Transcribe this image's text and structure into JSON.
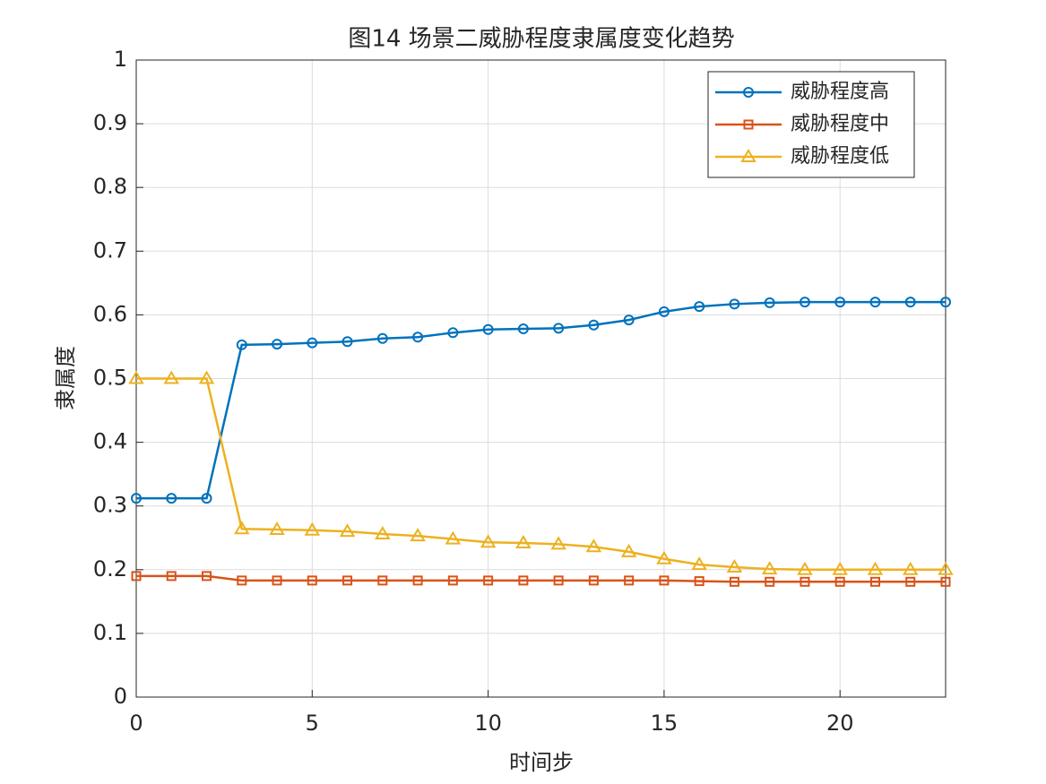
{
  "chart_data": {
    "type": "line",
    "title": "图14 场景二威胁程度隶属度变化趋势",
    "x_label": "时间步",
    "y_label": "隶属度",
    "x": [
      0,
      1,
      2,
      3,
      4,
      5,
      6,
      7,
      8,
      9,
      10,
      11,
      12,
      13,
      14,
      15,
      16,
      17,
      18,
      19,
      20,
      21,
      22,
      23
    ],
    "series": [
      {
        "name": "威胁程度高",
        "color": "#0072bd",
        "marker": "circle",
        "values": [
          0.312,
          0.312,
          0.312,
          0.553,
          0.554,
          0.556,
          0.558,
          0.563,
          0.565,
          0.572,
          0.577,
          0.578,
          0.579,
          0.584,
          0.592,
          0.605,
          0.613,
          0.617,
          0.619,
          0.62,
          0.62,
          0.62,
          0.62,
          0.62
        ]
      },
      {
        "name": "威胁程度中",
        "color": "#d95319",
        "marker": "square",
        "values": [
          0.19,
          0.19,
          0.19,
          0.183,
          0.183,
          0.183,
          0.183,
          0.183,
          0.183,
          0.183,
          0.183,
          0.183,
          0.183,
          0.183,
          0.183,
          0.183,
          0.182,
          0.181,
          0.181,
          0.181,
          0.181,
          0.181,
          0.181,
          0.181
        ]
      },
      {
        "name": "威胁程度低",
        "color": "#edb120",
        "marker": "triangle",
        "values": [
          0.5,
          0.5,
          0.5,
          0.264,
          0.263,
          0.262,
          0.26,
          0.256,
          0.253,
          0.248,
          0.243,
          0.242,
          0.24,
          0.236,
          0.228,
          0.217,
          0.208,
          0.204,
          0.201,
          0.2,
          0.2,
          0.2,
          0.2,
          0.2
        ]
      }
    ],
    "xlim": [
      0,
      23
    ],
    "ylim": [
      0,
      1
    ],
    "xticks": [
      0,
      5,
      10,
      15,
      20
    ],
    "yticks": [
      0,
      0.1,
      0.2,
      0.3,
      0.4,
      0.5,
      0.6,
      0.7,
      0.8,
      0.9,
      1
    ],
    "grid": true,
    "legend_position": "upper-right"
  }
}
